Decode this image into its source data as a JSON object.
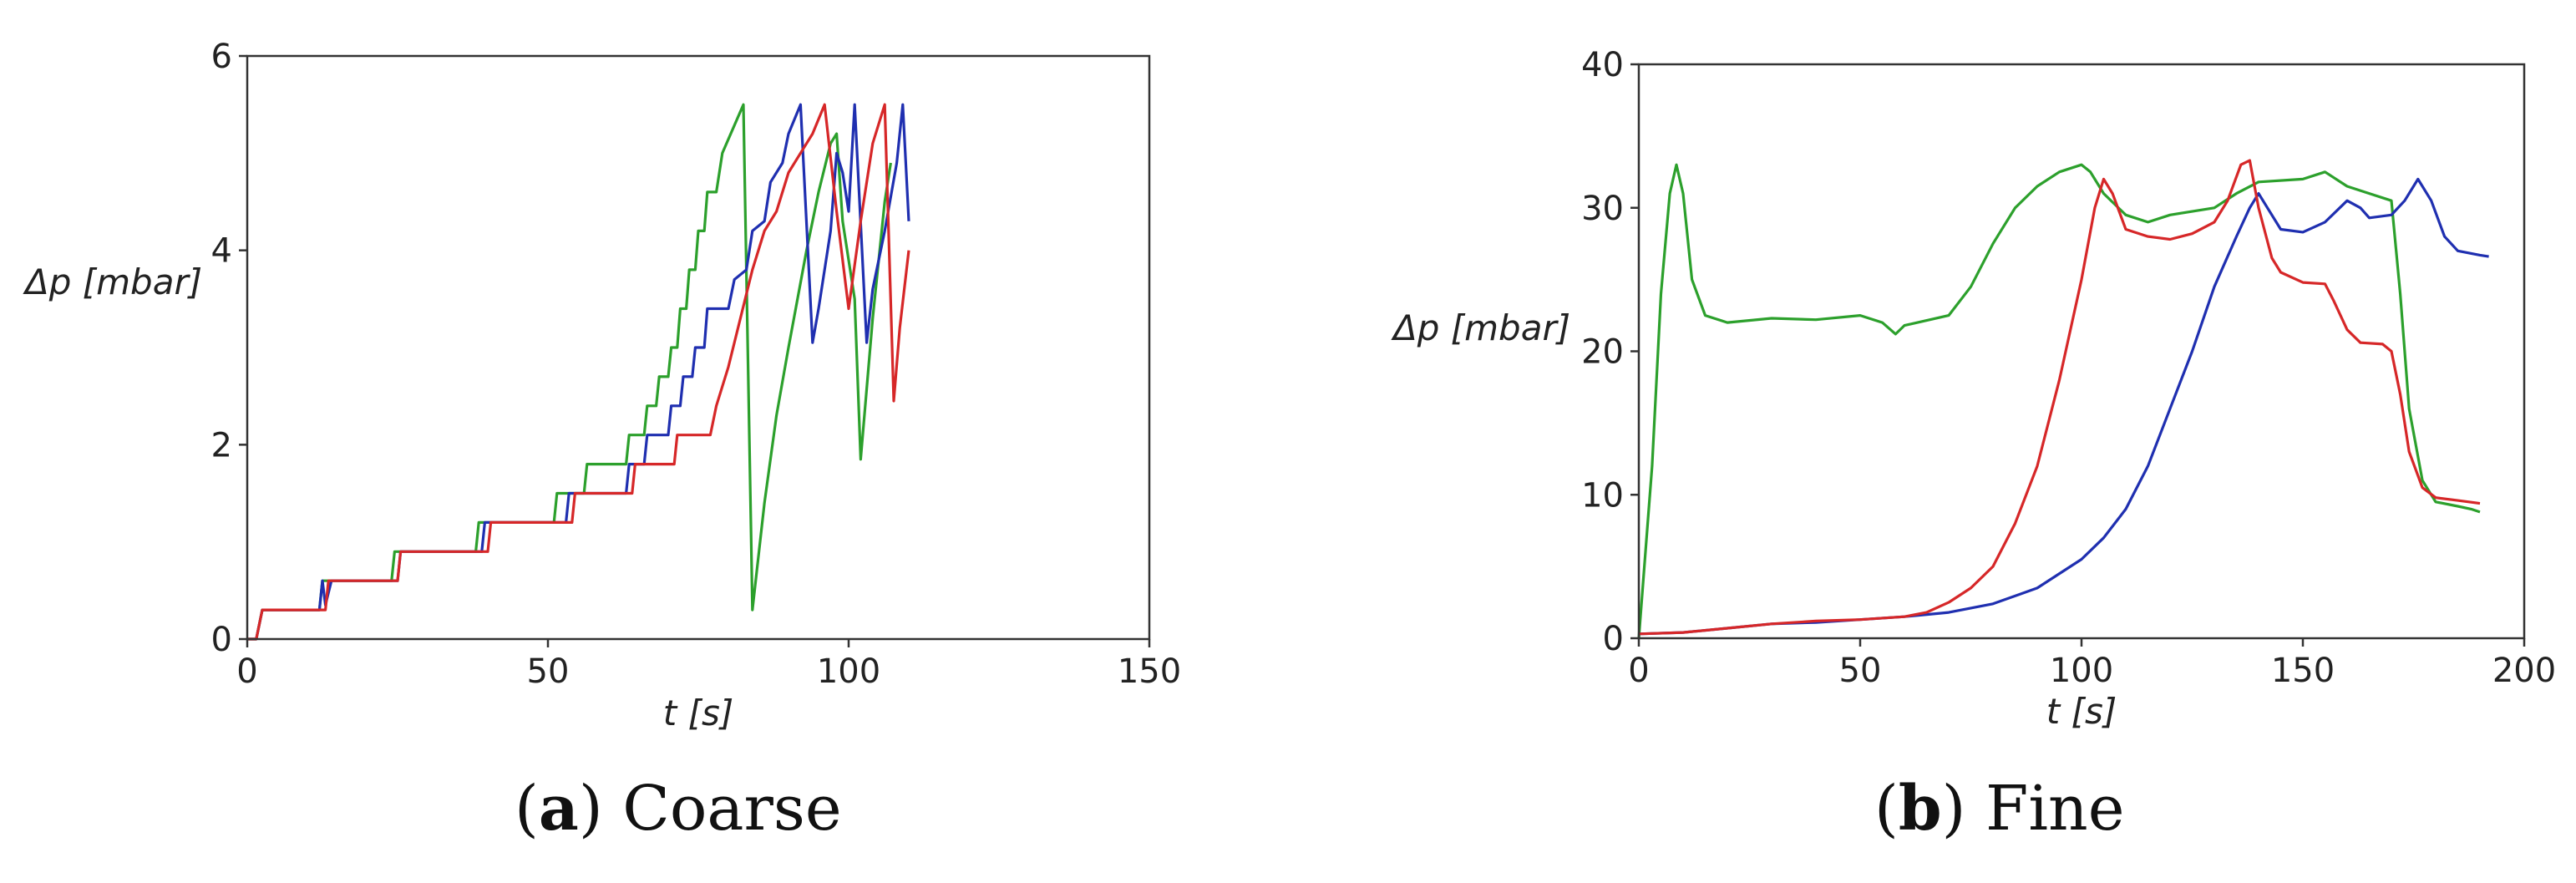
{
  "chart_data": [
    {
      "id": "coarse",
      "type": "line",
      "caption": {
        "open": "(",
        "letter": "a",
        "close": ")",
        "text": " Coarse"
      },
      "xlabel": "t [s]",
      "ylabel": "Δp [mbar]",
      "xlim": [
        0,
        150
      ],
      "ylim": [
        0,
        6
      ],
      "xticks": [
        "0",
        "50",
        "100",
        "150"
      ],
      "yticks": [
        "0",
        "2",
        "4",
        "6"
      ],
      "grid": false,
      "legend": "none",
      "series": [
        {
          "color": "#2ca02c",
          "points": [
            [
              0,
              0
            ],
            [
              1.5,
              0
            ],
            [
              2.5,
              0.3
            ],
            [
              12,
              0.3
            ],
            [
              12.5,
              0.6
            ],
            [
              24,
              0.6
            ],
            [
              24.5,
              0.9
            ],
            [
              38,
              0.9
            ],
            [
              38.5,
              1.2
            ],
            [
              51,
              1.2
            ],
            [
              51.5,
              1.5
            ],
            [
              56,
              1.5
            ],
            [
              56.5,
              1.8
            ],
            [
              63,
              1.8
            ],
            [
              63.5,
              2.1
            ],
            [
              66,
              2.1
            ],
            [
              66.5,
              2.4
            ],
            [
              68,
              2.4
            ],
            [
              68.5,
              2.7
            ],
            [
              70,
              2.7
            ],
            [
              70.5,
              3.0
            ],
            [
              71.5,
              3.0
            ],
            [
              72,
              3.4
            ],
            [
              73,
              3.4
            ],
            [
              73.5,
              3.8
            ],
            [
              74.5,
              3.8
            ],
            [
              75,
              4.2
            ],
            [
              76,
              4.2
            ],
            [
              76.5,
              4.6
            ],
            [
              78,
              4.6
            ],
            [
              79,
              5.0
            ],
            [
              82.5,
              5.5
            ],
            [
              84,
              0.3
            ],
            [
              86,
              1.4
            ],
            [
              88,
              2.3
            ],
            [
              90,
              3.0
            ],
            [
              93,
              4.0
            ],
            [
              95,
              4.6
            ],
            [
              97,
              5.1
            ],
            [
              98,
              5.2
            ],
            [
              99,
              4.3
            ],
            [
              101,
              3.5
            ],
            [
              102,
              1.85
            ],
            [
              104,
              3.3
            ],
            [
              106,
              4.5
            ],
            [
              107,
              4.9
            ]
          ]
        },
        {
          "color": "#1f2fb0",
          "points": [
            [
              0,
              0
            ],
            [
              1.5,
              0
            ],
            [
              2.5,
              0.3
            ],
            [
              12,
              0.3
            ],
            [
              12.5,
              0.6
            ],
            [
              13,
              0.35
            ],
            [
              14,
              0.6
            ],
            [
              25,
              0.6
            ],
            [
              25.5,
              0.9
            ],
            [
              39,
              0.9
            ],
            [
              39.5,
              1.2
            ],
            [
              53,
              1.2
            ],
            [
              53.5,
              1.5
            ],
            [
              63,
              1.5
            ],
            [
              63.5,
              1.8
            ],
            [
              66,
              1.8
            ],
            [
              66.5,
              2.1
            ],
            [
              70,
              2.1
            ],
            [
              70.5,
              2.4
            ],
            [
              72,
              2.4
            ],
            [
              72.5,
              2.7
            ],
            [
              74,
              2.7
            ],
            [
              74.5,
              3.0
            ],
            [
              76,
              3.0
            ],
            [
              76.5,
              3.4
            ],
            [
              80,
              3.4
            ],
            [
              81,
              3.7
            ],
            [
              83,
              3.8
            ],
            [
              84,
              4.2
            ],
            [
              86,
              4.3
            ],
            [
              87,
              4.7
            ],
            [
              89,
              4.9
            ],
            [
              90,
              5.2
            ],
            [
              92,
              5.5
            ],
            [
              94,
              3.05
            ],
            [
              95,
              3.4
            ],
            [
              97,
              4.2
            ],
            [
              98,
              5.0
            ],
            [
              99,
              4.8
            ],
            [
              100,
              4.4
            ],
            [
              101,
              5.5
            ],
            [
              103,
              3.05
            ],
            [
              104,
              3.6
            ],
            [
              106,
              4.2
            ],
            [
              108,
              4.9
            ],
            [
              109,
              5.5
            ],
            [
              110,
              4.3
            ]
          ]
        },
        {
          "color": "#d62728",
          "points": [
            [
              0,
              0
            ],
            [
              1.5,
              0
            ],
            [
              2.5,
              0.3
            ],
            [
              13,
              0.3
            ],
            [
              13.5,
              0.6
            ],
            [
              25,
              0.6
            ],
            [
              25.5,
              0.9
            ],
            [
              40,
              0.9
            ],
            [
              40.5,
              1.2
            ],
            [
              54,
              1.2
            ],
            [
              54.5,
              1.5
            ],
            [
              64,
              1.5
            ],
            [
              64.5,
              1.8
            ],
            [
              71,
              1.8
            ],
            [
              71.5,
              2.1
            ],
            [
              77,
              2.1
            ],
            [
              78,
              2.4
            ],
            [
              80,
              2.8
            ],
            [
              82,
              3.3
            ],
            [
              84,
              3.8
            ],
            [
              86,
              4.2
            ],
            [
              88,
              4.4
            ],
            [
              90,
              4.8
            ],
            [
              92,
              5.0
            ],
            [
              94,
              5.2
            ],
            [
              96,
              5.5
            ],
            [
              98,
              4.4
            ],
            [
              100,
              3.4
            ],
            [
              102,
              4.3
            ],
            [
              104,
              5.1
            ],
            [
              106,
              5.5
            ],
            [
              107.5,
              2.45
            ],
            [
              108.5,
              3.2
            ],
            [
              110,
              4.0
            ]
          ]
        }
      ]
    },
    {
      "id": "fine",
      "type": "line",
      "caption": {
        "open": "(",
        "letter": "b",
        "close": ")",
        "text": " Fine"
      },
      "xlabel": "t [s]",
      "ylabel": "Δp [mbar]",
      "xlim": [
        0,
        200
      ],
      "ylim": [
        0,
        40
      ],
      "xticks": [
        "0",
        "50",
        "100",
        "150",
        "200"
      ],
      "yticks": [
        "0",
        "10",
        "20",
        "30",
        "40"
      ],
      "grid": false,
      "legend": "none",
      "series": [
        {
          "color": "#2ca02c",
          "points": [
            [
              0,
              0
            ],
            [
              3,
              12
            ],
            [
              5,
              24
            ],
            [
              7,
              31
            ],
            [
              8.5,
              33
            ],
            [
              10,
              31
            ],
            [
              12,
              25
            ],
            [
              15,
              22.5
            ],
            [
              20,
              22
            ],
            [
              30,
              22.3
            ],
            [
              40,
              22.2
            ],
            [
              50,
              22.5
            ],
            [
              55,
              22
            ],
            [
              58,
              21.2
            ],
            [
              60,
              21.8
            ],
            [
              70,
              22.5
            ],
            [
              75,
              24.5
            ],
            [
              80,
              27.5
            ],
            [
              85,
              30
            ],
            [
              90,
              31.5
            ],
            [
              95,
              32.5
            ],
            [
              100,
              33
            ],
            [
              102,
              32.5
            ],
            [
              105,
              31
            ],
            [
              110,
              29.5
            ],
            [
              115,
              29
            ],
            [
              120,
              29.5
            ],
            [
              130,
              30
            ],
            [
              135,
              31
            ],
            [
              140,
              31.8
            ],
            [
              150,
              32
            ],
            [
              155,
              32.5
            ],
            [
              160,
              31.5
            ],
            [
              165,
              31
            ],
            [
              170,
              30.5
            ],
            [
              172,
              24
            ],
            [
              174,
              16
            ],
            [
              177,
              11
            ],
            [
              180,
              9.5
            ],
            [
              185,
              9.2
            ],
            [
              188,
              9
            ],
            [
              190,
              8.8
            ]
          ]
        },
        {
          "color": "#1f2fb0",
          "points": [
            [
              0,
              0.3
            ],
            [
              10,
              0.4
            ],
            [
              20,
              0.7
            ],
            [
              30,
              1
            ],
            [
              40,
              1.1
            ],
            [
              50,
              1.3
            ],
            [
              60,
              1.5
            ],
            [
              70,
              1.8
            ],
            [
              80,
              2.4
            ],
            [
              90,
              3.5
            ],
            [
              100,
              5.5
            ],
            [
              105,
              7
            ],
            [
              110,
              9
            ],
            [
              115,
              12
            ],
            [
              120,
              16
            ],
            [
              125,
              20
            ],
            [
              130,
              24.5
            ],
            [
              135,
              28
            ],
            [
              138,
              30
            ],
            [
              140,
              31
            ],
            [
              142,
              30
            ],
            [
              145,
              28.5
            ],
            [
              150,
              28.3
            ],
            [
              155,
              29
            ],
            [
              160,
              30.5
            ],
            [
              163,
              30
            ],
            [
              165,
              29.3
            ],
            [
              170,
              29.5
            ],
            [
              173,
              30.5
            ],
            [
              176,
              32
            ],
            [
              179,
              30.5
            ],
            [
              182,
              28
            ],
            [
              185,
              27
            ],
            [
              190,
              26.7
            ],
            [
              192,
              26.6
            ]
          ]
        },
        {
          "color": "#d62728",
          "points": [
            [
              0,
              0.3
            ],
            [
              10,
              0.4
            ],
            [
              20,
              0.7
            ],
            [
              30,
              1
            ],
            [
              40,
              1.2
            ],
            [
              50,
              1.3
            ],
            [
              60,
              1.5
            ],
            [
              65,
              1.8
            ],
            [
              70,
              2.5
            ],
            [
              75,
              3.5
            ],
            [
              80,
              5
            ],
            [
              85,
              8
            ],
            [
              90,
              12
            ],
            [
              95,
              18
            ],
            [
              100,
              25
            ],
            [
              103,
              30
            ],
            [
              105,
              32
            ],
            [
              107,
              31
            ],
            [
              110,
              28.5
            ],
            [
              115,
              28
            ],
            [
              120,
              27.8
            ],
            [
              125,
              28.2
            ],
            [
              130,
              29
            ],
            [
              133,
              30.5
            ],
            [
              136,
              33
            ],
            [
              138,
              33.3
            ],
            [
              140,
              30
            ],
            [
              143,
              26.5
            ],
            [
              145,
              25.5
            ],
            [
              150,
              24.8
            ],
            [
              155,
              24.7
            ],
            [
              157,
              23.5
            ],
            [
              160,
              21.5
            ],
            [
              163,
              20.6
            ],
            [
              168,
              20.5
            ],
            [
              170,
              20
            ],
            [
              172,
              17
            ],
            [
              174,
              13
            ],
            [
              177,
              10.5
            ],
            [
              180,
              9.8
            ],
            [
              185,
              9.6
            ],
            [
              190,
              9.4
            ]
          ]
        }
      ]
    }
  ]
}
